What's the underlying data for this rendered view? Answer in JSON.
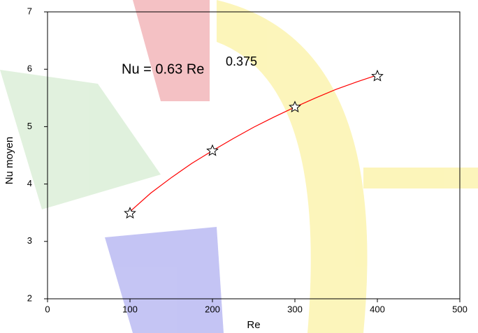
{
  "chart_data": {
    "type": "scatter",
    "annotation": "Nu = 0.63 Re",
    "annotation_exponent": "0.375",
    "x_label": "Re",
    "y_label": "Nu moyen",
    "xlim": [
      0,
      500
    ],
    "xticks": [
      0,
      100,
      200,
      300,
      400,
      500
    ],
    "ylim": [
      2,
      7
    ],
    "yticks": [
      2,
      3,
      4,
      5,
      6,
      7
    ],
    "series": [
      {
        "kind": "points",
        "color": "#000000",
        "x": [
          100,
          200,
          300,
          400
        ],
        "values": [
          3.49,
          4.58,
          5.34,
          5.88
        ]
      },
      {
        "kind": "line",
        "color": "#ff0000",
        "x": [
          100,
          125,
          150,
          175,
          200,
          225,
          250,
          275,
          300,
          325,
          350,
          375,
          400
        ],
        "values": [
          3.52,
          3.84,
          4.11,
          4.36,
          4.58,
          4.79,
          4.99,
          5.17,
          5.34,
          5.5,
          5.65,
          5.78,
          5.9
        ]
      }
    ]
  }
}
